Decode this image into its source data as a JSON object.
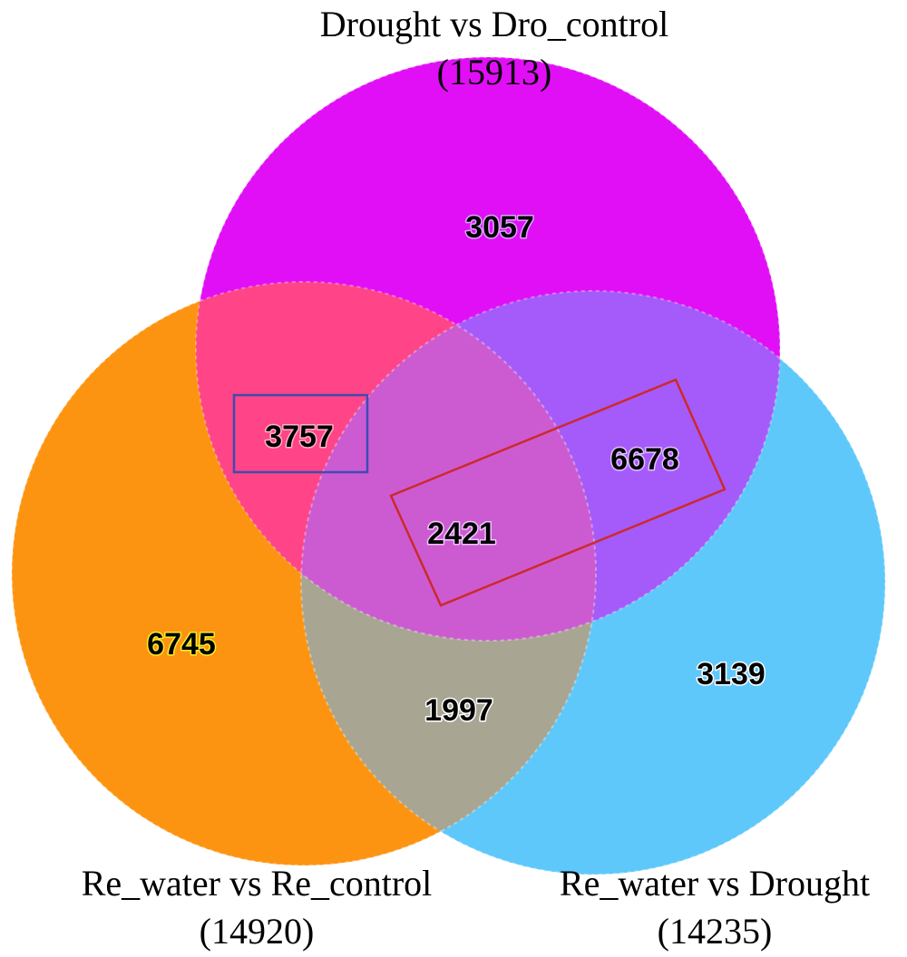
{
  "sets": [
    {
      "id": "top",
      "name": "Drought vs Dro_control",
      "total": "(15913)",
      "color": "#e10ff5"
    },
    {
      "id": "left",
      "name": "Re_water vs Re_control",
      "total": "(14920)",
      "color": "#fd9411"
    },
    {
      "id": "right",
      "name": "Re_water vs Drought",
      "total": "(14235)",
      "color": "#5ec8fb"
    }
  ],
  "regions": {
    "top_only": {
      "value": "3057",
      "halo": "#d9a5ff"
    },
    "left_only": {
      "value": "6745",
      "halo": "#f4ee2a"
    },
    "right_only": {
      "value": "3139",
      "halo": "#ffffff"
    },
    "top_left": {
      "value": "3757",
      "halo": "#ffb3c8"
    },
    "top_right": {
      "value": "6678",
      "halo": "#e2c0ff"
    },
    "left_right": {
      "value": "1997",
      "halo": "#ffffff"
    },
    "all_three": {
      "value": "2421",
      "halo": "#f1c6ff"
    }
  },
  "highlights": {
    "blue_box_color": "#3f4bb3",
    "red_box_color": "#cc2a2a"
  },
  "region_colors": {
    "top_left": "#ff4487",
    "top_right": "#a55bfa",
    "left_right": "#a8a692",
    "all_three": "#cc5bd2"
  }
}
